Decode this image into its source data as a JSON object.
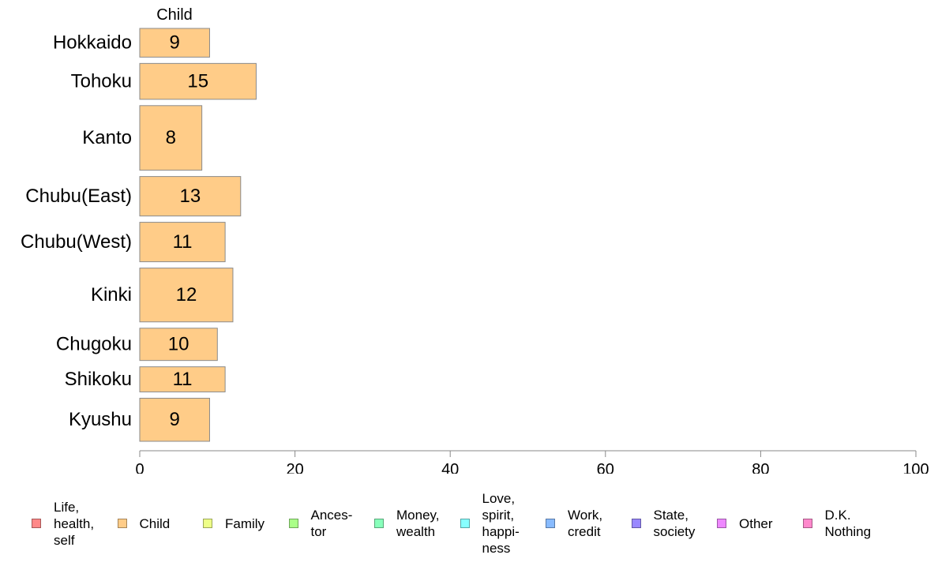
{
  "chart_data": {
    "type": "bar",
    "orientation": "horizontal",
    "panel_label": "Child",
    "categories": [
      "Hokkaido",
      "Tohoku",
      "Kanto",
      "Chubu(East)",
      "Chubu(West)",
      "Kinki",
      "Chugoku",
      "Shikoku",
      "Kyushu"
    ],
    "values": [
      9,
      15,
      8,
      13,
      11,
      12,
      10,
      11,
      9
    ],
    "relative_bar_thickness": [
      0.8,
      1.0,
      1.8,
      1.1,
      1.1,
      1.5,
      0.9,
      0.7,
      1.2
    ],
    "bar_color": "#FFCC88",
    "xlim": [
      0,
      100
    ],
    "xticks": [
      0,
      20,
      40,
      60,
      80,
      100
    ],
    "grid": false,
    "legend_position": "bottom",
    "legend": [
      {
        "label": "Life,\nhealth,\nself",
        "color": "#FF8888"
      },
      {
        "label": "Child",
        "color": "#FFCC88"
      },
      {
        "label": "Family",
        "color": "#EEFF88"
      },
      {
        "label": "Ances-\ntor",
        "color": "#AAFF88"
      },
      {
        "label": "Money,\nwealth",
        "color": "#88FFBB"
      },
      {
        "label": "Love,\nspirit,\nhappi-\nness",
        "color": "#88FFFF"
      },
      {
        "label": "Work,\ncredit",
        "color": "#88BBFF"
      },
      {
        "label": "State,\nsociety",
        "color": "#9988FF"
      },
      {
        "label": "Other",
        "color": "#EE88FF"
      },
      {
        "label": "D.K.\nNothing",
        "color": "#FF88CC"
      }
    ]
  }
}
